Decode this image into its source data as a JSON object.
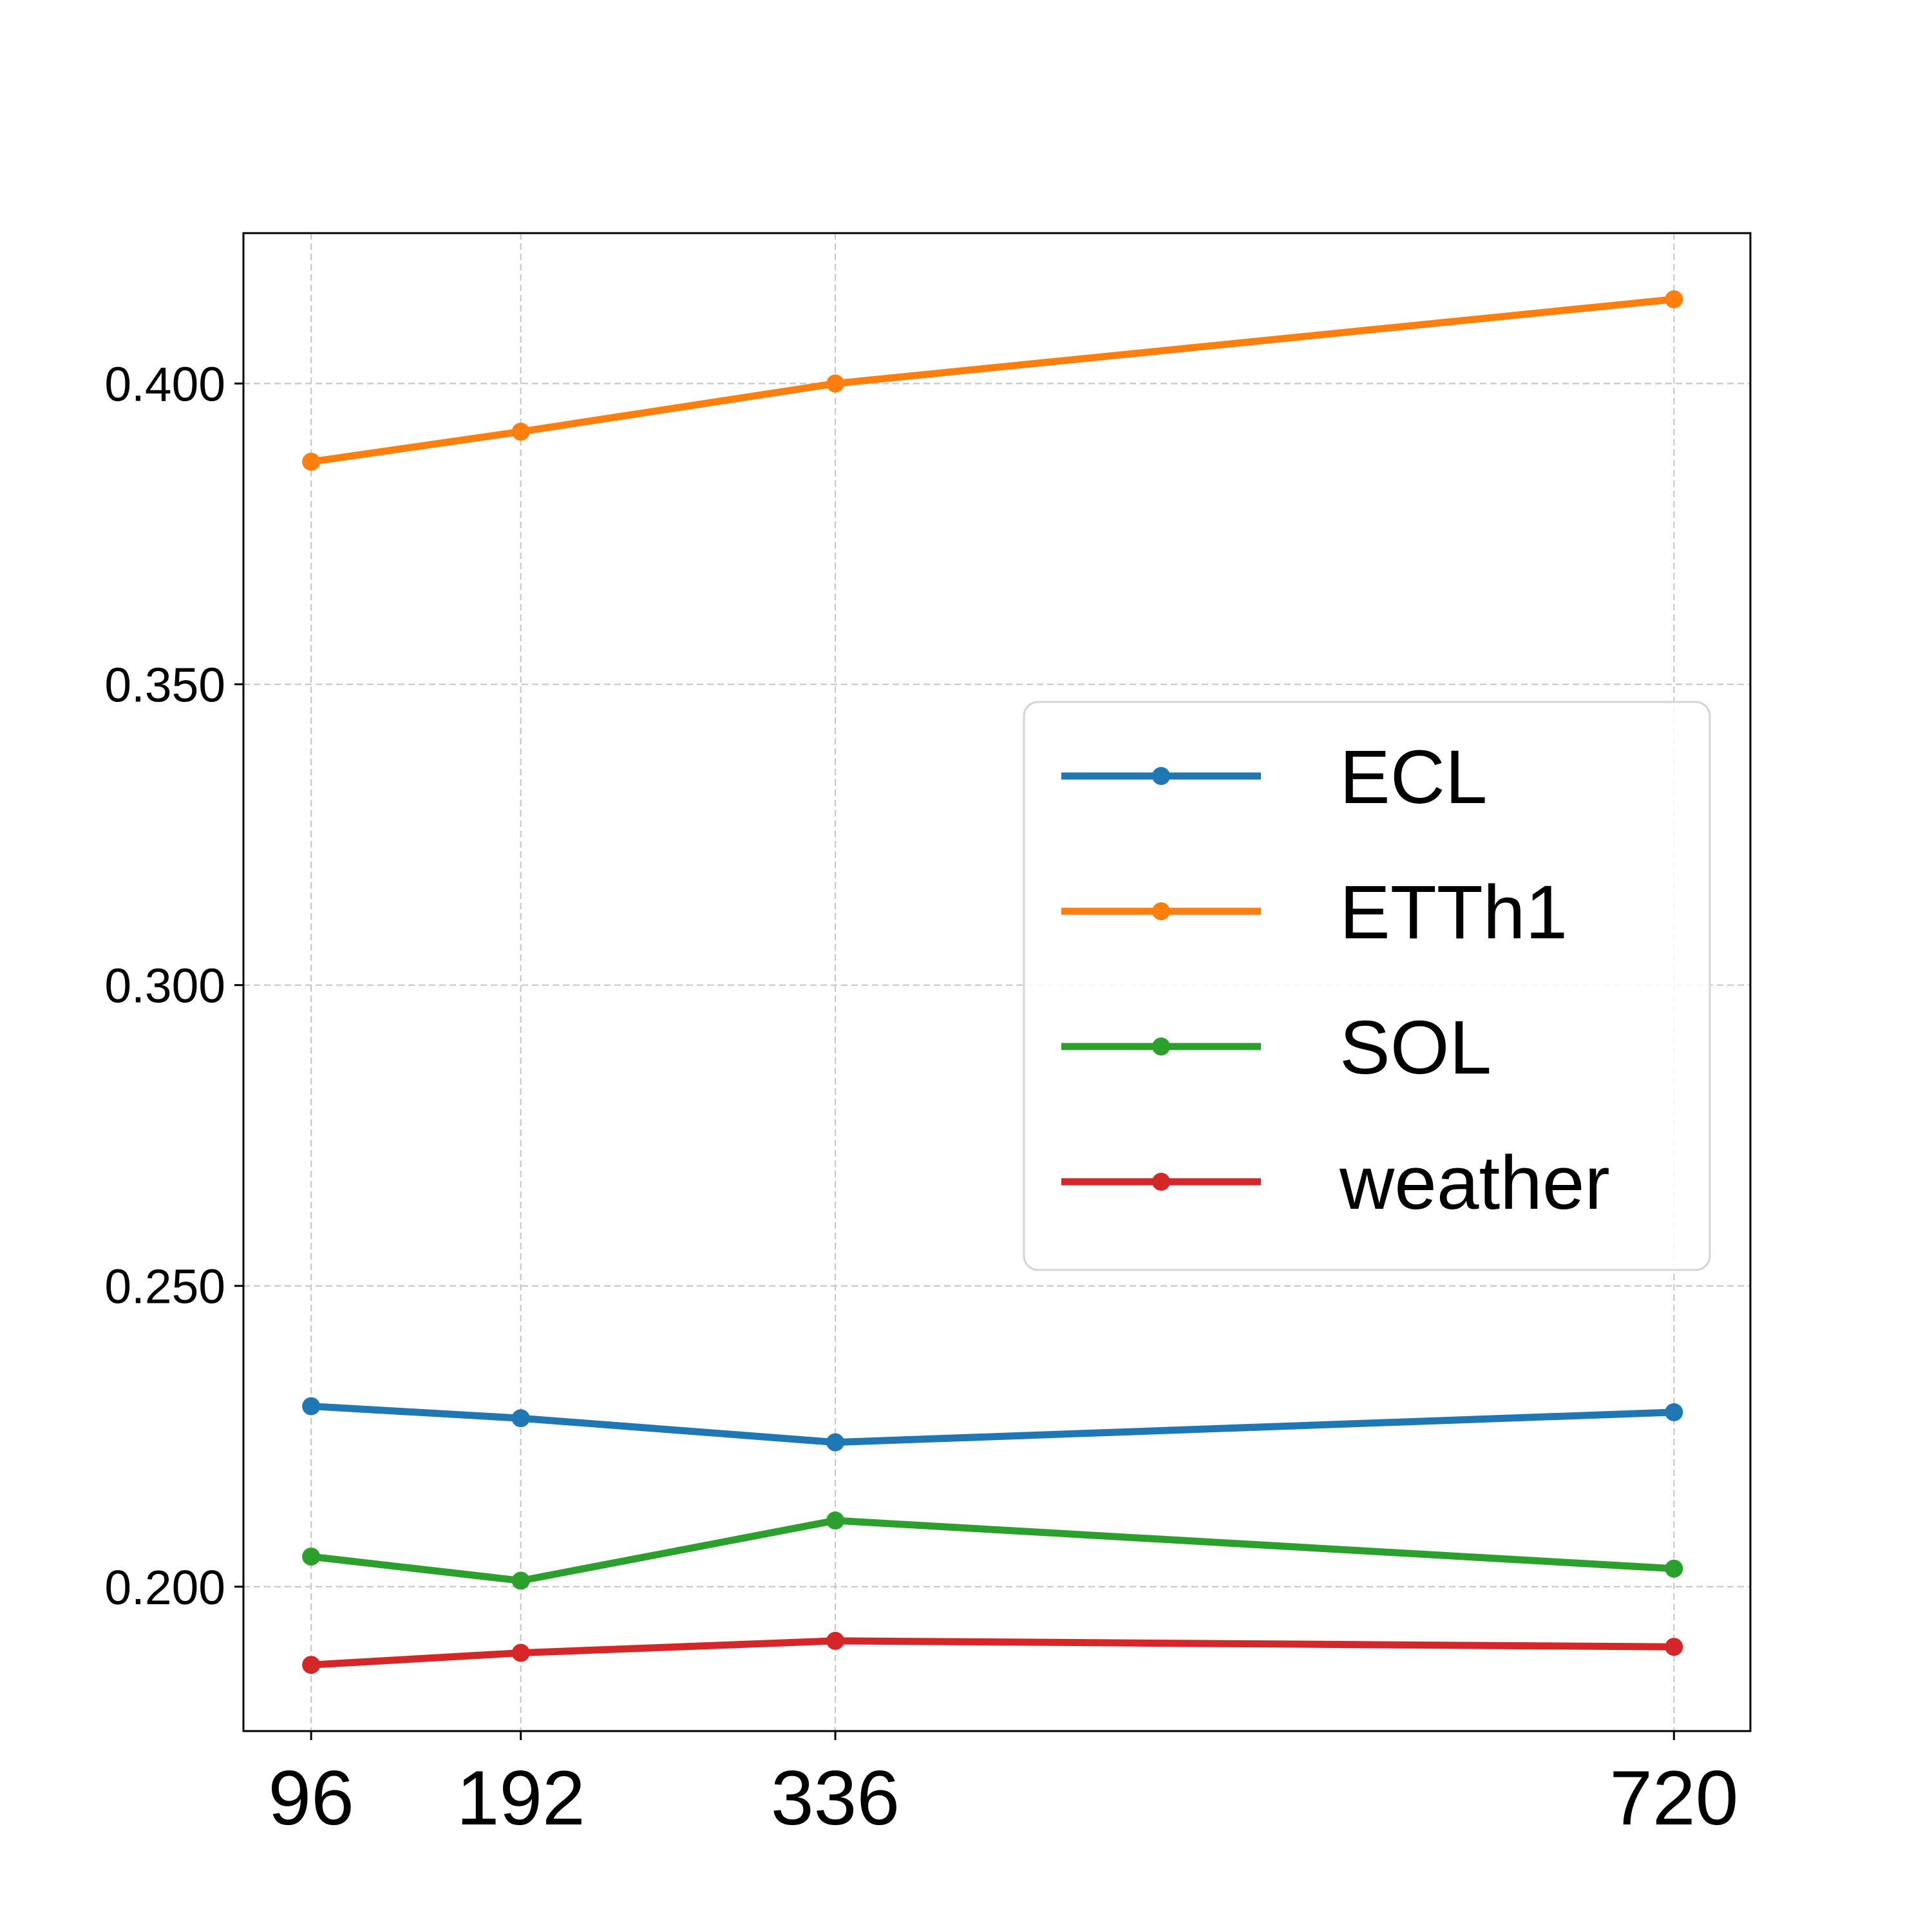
{
  "chart_data": {
    "type": "line",
    "title": "",
    "xlabel": "",
    "ylabel": "",
    "x": [
      96,
      192,
      336,
      720
    ],
    "xticks": [
      "96",
      "192",
      "336",
      "720"
    ],
    "yticks": [
      "0.200",
      "0.250",
      "0.300",
      "0.350",
      "0.400"
    ],
    "ytick_values": [
      0.2,
      0.25,
      0.3,
      0.35,
      0.4
    ],
    "ylim": [
      0.176,
      0.425
    ],
    "xlim": [
      65,
      755
    ],
    "grid": true,
    "legend_position": "center-right",
    "series": [
      {
        "name": "ECL",
        "color": "#1f77b4",
        "values": [
          0.23,
          0.228,
          0.224,
          0.229
        ]
      },
      {
        "name": "ETTh1",
        "color": "#ff7f0e",
        "values": [
          0.387,
          0.392,
          0.4,
          0.414
        ]
      },
      {
        "name": "SOL",
        "color": "#2ca02c",
        "values": [
          0.205,
          0.201,
          0.211,
          0.203
        ]
      },
      {
        "name": "weather",
        "color": "#d62728",
        "values": [
          0.187,
          0.189,
          0.191,
          0.19
        ]
      }
    ]
  }
}
